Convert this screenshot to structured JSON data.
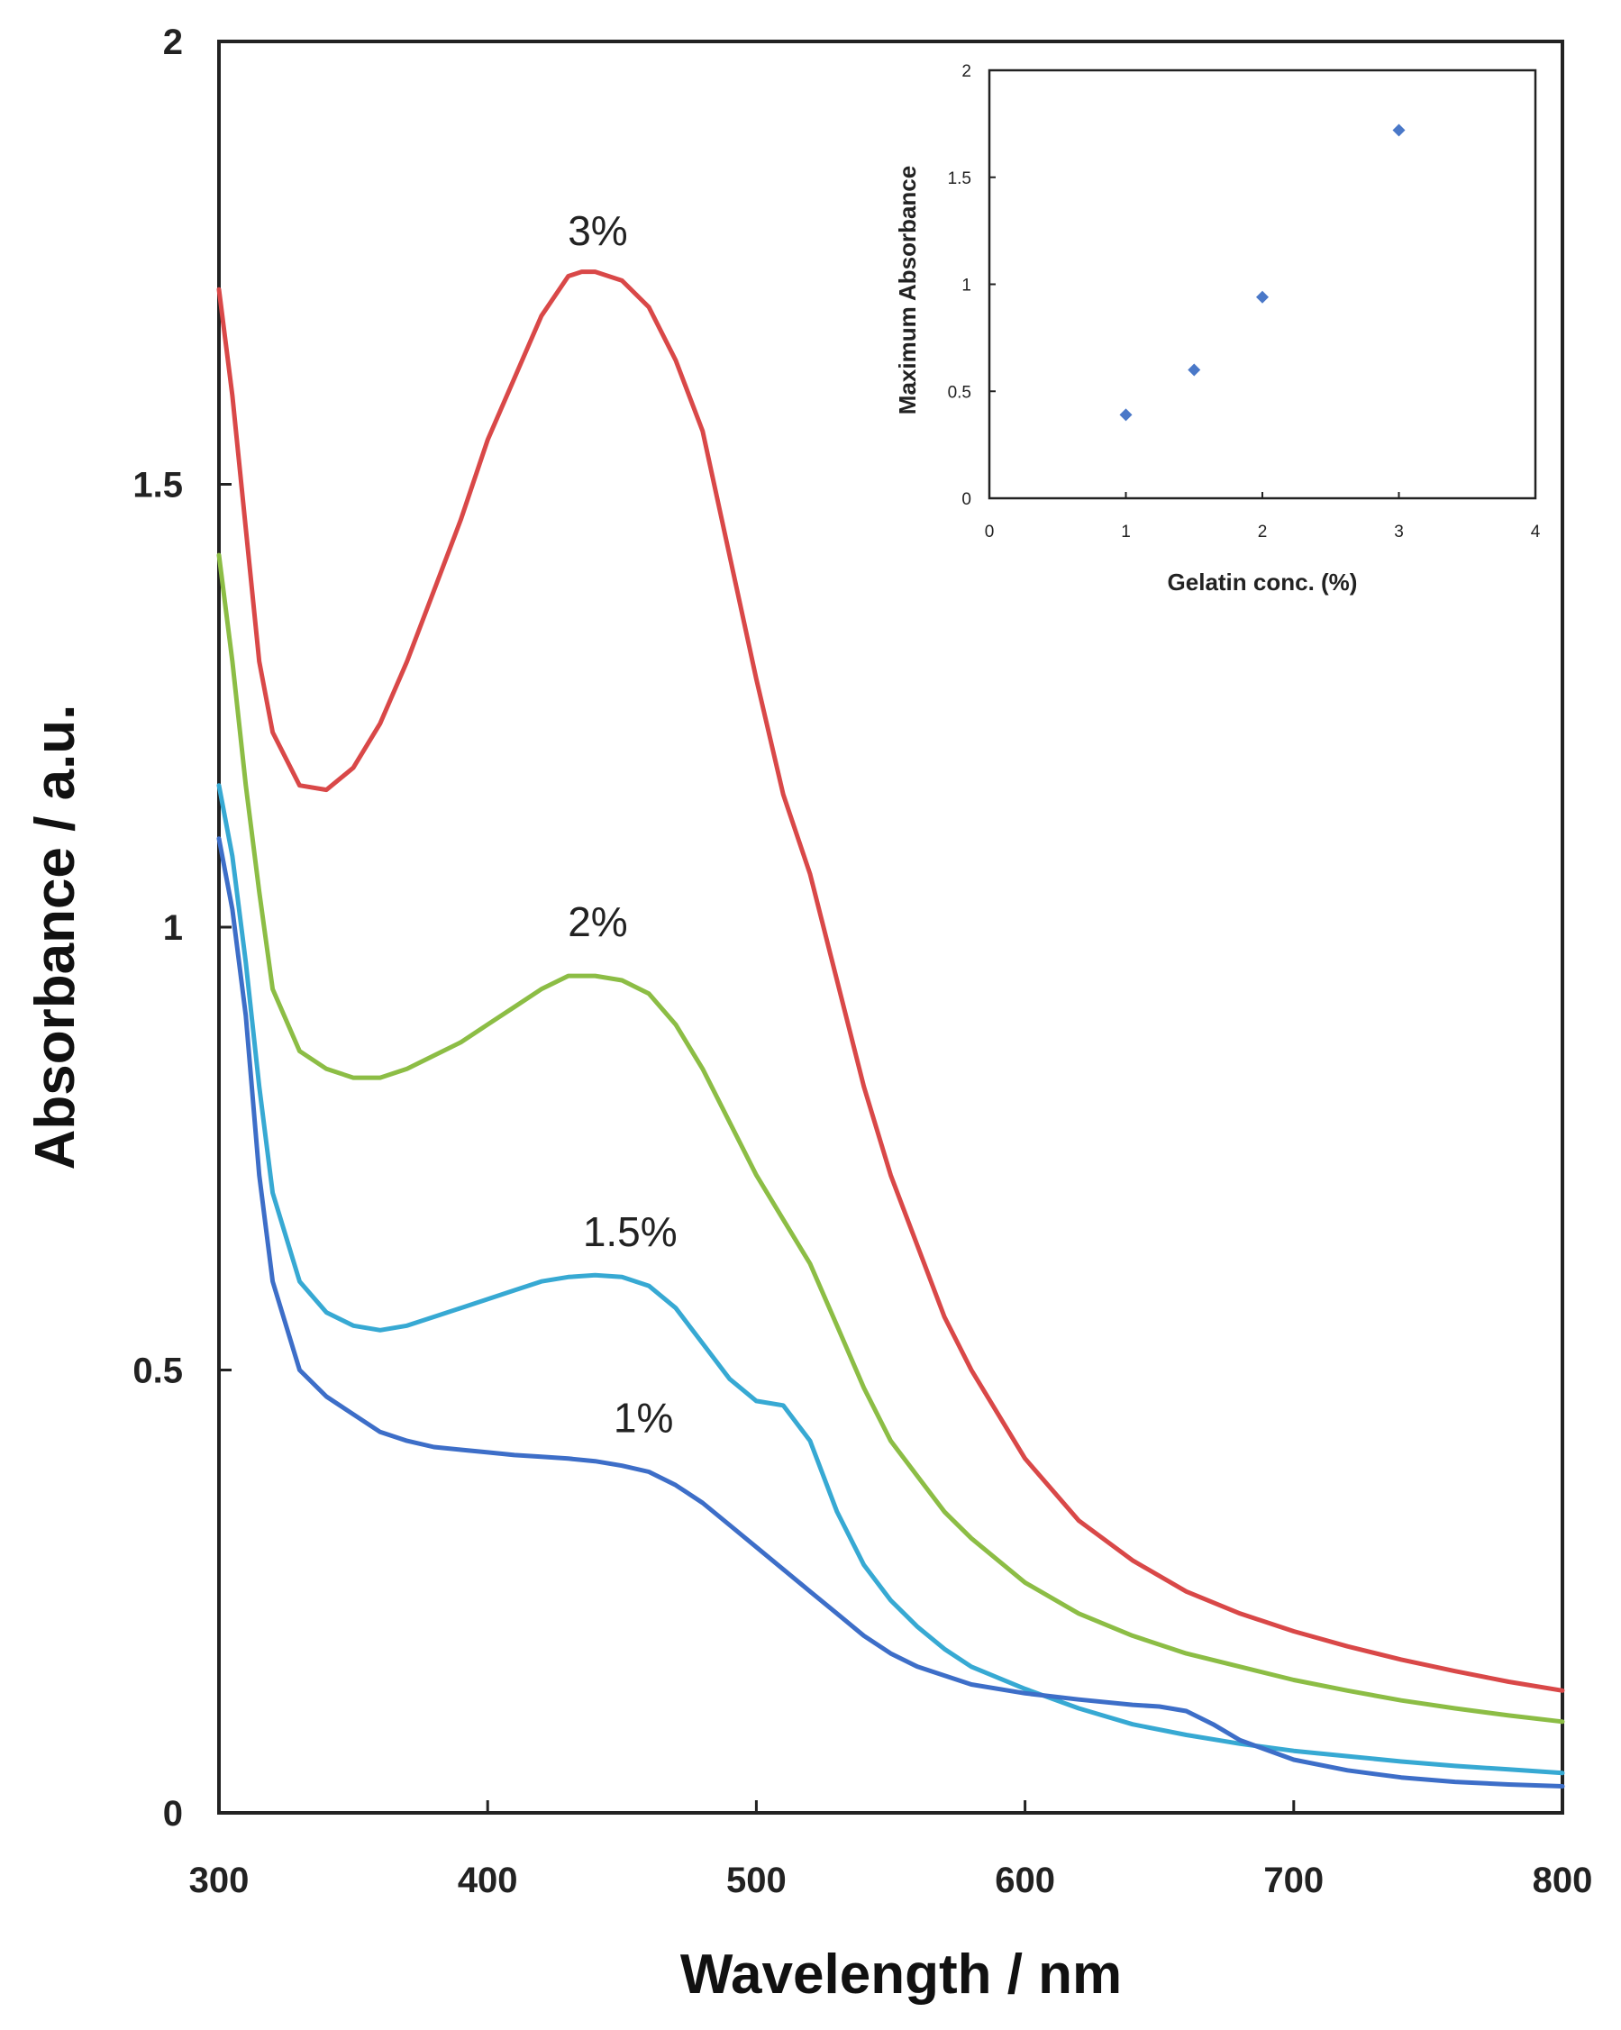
{
  "chart_data": [
    {
      "type": "line",
      "title": "",
      "xlabel": "Wavelength / nm",
      "ylabel": "Absorbance / a.u.",
      "xlim": [
        300,
        800
      ],
      "ylim": [
        0,
        2
      ],
      "x_ticks": [
        "300",
        "400",
        "500",
        "600",
        "700",
        "800"
      ],
      "y_ticks": [
        "0",
        "0.5",
        "1",
        "1.5",
        "2"
      ],
      "grid": false,
      "series": [
        {
          "name": "3%",
          "label": "3%",
          "color": "#d94848",
          "label_at": [
            441,
            1.77
          ],
          "points": [
            [
              300,
              1.72
            ],
            [
              305,
              1.6
            ],
            [
              310,
              1.45
            ],
            [
              315,
              1.3
            ],
            [
              320,
              1.22
            ],
            [
              330,
              1.16
            ],
            [
              340,
              1.155
            ],
            [
              350,
              1.18
            ],
            [
              360,
              1.23
            ],
            [
              370,
              1.3
            ],
            [
              380,
              1.38
            ],
            [
              390,
              1.46
            ],
            [
              400,
              1.55
            ],
            [
              410,
              1.62
            ],
            [
              420,
              1.69
            ],
            [
              430,
              1.735
            ],
            [
              435,
              1.74
            ],
            [
              440,
              1.74
            ],
            [
              450,
              1.73
            ],
            [
              460,
              1.7
            ],
            [
              470,
              1.64
            ],
            [
              480,
              1.56
            ],
            [
              490,
              1.42
            ],
            [
              500,
              1.28
            ],
            [
              510,
              1.15
            ],
            [
              520,
              1.06
            ],
            [
              530,
              0.94
            ],
            [
              540,
              0.82
            ],
            [
              550,
              0.72
            ],
            [
              560,
              0.64
            ],
            [
              570,
              0.56
            ],
            [
              580,
              0.5
            ],
            [
              600,
              0.4
            ],
            [
              620,
              0.33
            ],
            [
              640,
              0.285
            ],
            [
              660,
              0.25
            ],
            [
              680,
              0.225
            ],
            [
              700,
              0.205
            ],
            [
              720,
              0.188
            ],
            [
              740,
              0.173
            ],
            [
              760,
              0.16
            ],
            [
              780,
              0.148
            ],
            [
              800,
              0.138
            ]
          ]
        },
        {
          "name": "2%",
          "label": "2%",
          "color": "#8cbd45",
          "label_at": [
            441,
            0.99
          ],
          "points": [
            [
              300,
              1.42
            ],
            [
              305,
              1.3
            ],
            [
              310,
              1.16
            ],
            [
              315,
              1.04
            ],
            [
              320,
              0.93
            ],
            [
              330,
              0.86
            ],
            [
              340,
              0.84
            ],
            [
              350,
              0.83
            ],
            [
              360,
              0.83
            ],
            [
              370,
              0.84
            ],
            [
              380,
              0.855
            ],
            [
              390,
              0.87
            ],
            [
              400,
              0.89
            ],
            [
              410,
              0.91
            ],
            [
              420,
              0.93
            ],
            [
              430,
              0.945
            ],
            [
              440,
              0.945
            ],
            [
              450,
              0.94
            ],
            [
              460,
              0.925
            ],
            [
              470,
              0.89
            ],
            [
              480,
              0.84
            ],
            [
              490,
              0.78
            ],
            [
              500,
              0.72
            ],
            [
              510,
              0.67
            ],
            [
              520,
              0.62
            ],
            [
              530,
              0.55
            ],
            [
              540,
              0.48
            ],
            [
              550,
              0.42
            ],
            [
              560,
              0.38
            ],
            [
              570,
              0.34
            ],
            [
              580,
              0.31
            ],
            [
              600,
              0.26
            ],
            [
              620,
              0.225
            ],
            [
              640,
              0.2
            ],
            [
              660,
              0.18
            ],
            [
              680,
              0.165
            ],
            [
              700,
              0.15
            ],
            [
              720,
              0.138
            ],
            [
              740,
              0.127
            ],
            [
              760,
              0.118
            ],
            [
              780,
              0.11
            ],
            [
              800,
              0.103
            ]
          ]
        },
        {
          "name": "1.5%",
          "label": "1.5%",
          "color": "#37a9d3",
          "label_at": [
            453,
            0.64
          ],
          "points": [
            [
              300,
              1.16
            ],
            [
              305,
              1.08
            ],
            [
              310,
              0.96
            ],
            [
              315,
              0.82
            ],
            [
              320,
              0.7
            ],
            [
              330,
              0.6
            ],
            [
              340,
              0.565
            ],
            [
              350,
              0.55
            ],
            [
              360,
              0.545
            ],
            [
              370,
              0.55
            ],
            [
              380,
              0.56
            ],
            [
              390,
              0.57
            ],
            [
              400,
              0.58
            ],
            [
              410,
              0.59
            ],
            [
              420,
              0.6
            ],
            [
              430,
              0.605
            ],
            [
              440,
              0.607
            ],
            [
              450,
              0.605
            ],
            [
              460,
              0.595
            ],
            [
              470,
              0.57
            ],
            [
              480,
              0.53
            ],
            [
              490,
              0.49
            ],
            [
              500,
              0.465
            ],
            [
              510,
              0.46
            ],
            [
              520,
              0.42
            ],
            [
              530,
              0.34
            ],
            [
              540,
              0.28
            ],
            [
              550,
              0.24
            ],
            [
              560,
              0.21
            ],
            [
              570,
              0.185
            ],
            [
              580,
              0.165
            ],
            [
              600,
              0.14
            ],
            [
              620,
              0.118
            ],
            [
              640,
              0.1
            ],
            [
              660,
              0.088
            ],
            [
              680,
              0.078
            ],
            [
              700,
              0.07
            ],
            [
              720,
              0.064
            ],
            [
              740,
              0.058
            ],
            [
              760,
              0.053
            ],
            [
              780,
              0.049
            ],
            [
              800,
              0.045
            ]
          ]
        },
        {
          "name": "1%",
          "label": "1%",
          "color": "#3d6ec8",
          "label_at": [
            458,
            0.43
          ],
          "points": [
            [
              300,
              1.1
            ],
            [
              305,
              1.02
            ],
            [
              310,
              0.9
            ],
            [
              315,
              0.72
            ],
            [
              320,
              0.6
            ],
            [
              330,
              0.5
            ],
            [
              340,
              0.47
            ],
            [
              350,
              0.45
            ],
            [
              360,
              0.43
            ],
            [
              370,
              0.42
            ],
            [
              380,
              0.413
            ],
            [
              390,
              0.41
            ],
            [
              400,
              0.407
            ],
            [
              410,
              0.404
            ],
            [
              420,
              0.402
            ],
            [
              430,
              0.4
            ],
            [
              440,
              0.397
            ],
            [
              450,
              0.392
            ],
            [
              460,
              0.385
            ],
            [
              470,
              0.37
            ],
            [
              480,
              0.35
            ],
            [
              490,
              0.325
            ],
            [
              500,
              0.3
            ],
            [
              510,
              0.275
            ],
            [
              520,
              0.25
            ],
            [
              530,
              0.225
            ],
            [
              540,
              0.2
            ],
            [
              550,
              0.18
            ],
            [
              560,
              0.165
            ],
            [
              570,
              0.155
            ],
            [
              580,
              0.145
            ],
            [
              600,
              0.135
            ],
            [
              620,
              0.128
            ],
            [
              640,
              0.122
            ],
            [
              650,
              0.12
            ],
            [
              660,
              0.115
            ],
            [
              670,
              0.1
            ],
            [
              680,
              0.082
            ],
            [
              700,
              0.06
            ],
            [
              720,
              0.048
            ],
            [
              740,
              0.04
            ],
            [
              760,
              0.035
            ],
            [
              780,
              0.032
            ],
            [
              800,
              0.03
            ]
          ]
        }
      ]
    },
    {
      "type": "scatter",
      "title": "",
      "xlabel": "Gelatin conc. (%)",
      "ylabel": "Maximum Absorbance",
      "xlim": [
        0,
        4
      ],
      "ylim": [
        0,
        2
      ],
      "x_ticks": [
        "0",
        "1",
        "2",
        "3",
        "4"
      ],
      "y_ticks": [
        "0",
        "0.5",
        "1",
        "1.5",
        "2"
      ],
      "grid": false,
      "series": [
        {
          "name": "Maximum Absorbance",
          "color": "#4a78c8",
          "points": [
            [
              1,
              0.39
            ],
            [
              1.5,
              0.6
            ],
            [
              2,
              0.94
            ],
            [
              3,
              1.72
            ]
          ]
        }
      ]
    }
  ]
}
